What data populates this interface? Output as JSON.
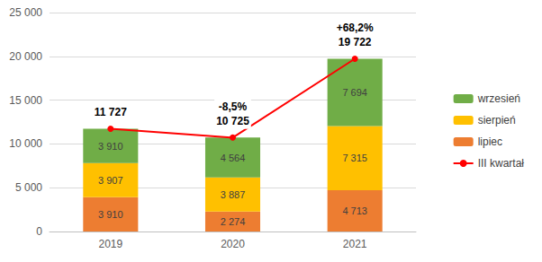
{
  "chart_data": {
    "type": "bar",
    "stacked": true,
    "data_labels": true,
    "grid": true,
    "legend": "right",
    "categories": [
      "2019",
      "2020",
      "2021"
    ],
    "ylim": [
      0,
      25000
    ],
    "yticks": [
      0,
      {
        "value": 5000,
        "label": "5 000"
      },
      {
        "value": 10000,
        "label": "10 000"
      },
      {
        "value": 15000,
        "label": "15 000"
      },
      {
        "value": 20000,
        "label": "20 000"
      },
      {
        "value": 25000,
        "label": "25 000"
      }
    ],
    "series": [
      {
        "name": "lipiec",
        "type": "bar",
        "color": "#ED7D31",
        "values": [
          3910,
          2274,
          4713
        ],
        "value_labels": [
          "3 910",
          "2 274",
          "4 713"
        ]
      },
      {
        "name": "sierpień",
        "type": "bar",
        "color": "#FFC000",
        "values": [
          3907,
          3887,
          7315
        ],
        "value_labels": [
          "3 907",
          "3 887",
          "7 315"
        ]
      },
      {
        "name": "wrzesień",
        "type": "bar",
        "color": "#70AD47",
        "values": [
          3910,
          4564,
          7694
        ],
        "value_labels": [
          "3 910",
          "4 564",
          "7 694"
        ]
      },
      {
        "name": "III kwartał",
        "type": "line",
        "color": "#FF0000",
        "marker": "circle",
        "values": [
          11727,
          10725,
          19722
        ],
        "value_labels": [
          "11 727",
          "10 725",
          "19 722"
        ],
        "changes": [
          null,
          -8.5,
          68.2
        ],
        "change_labels": [
          null,
          "-8,5%",
          "+68,2%"
        ]
      }
    ]
  }
}
